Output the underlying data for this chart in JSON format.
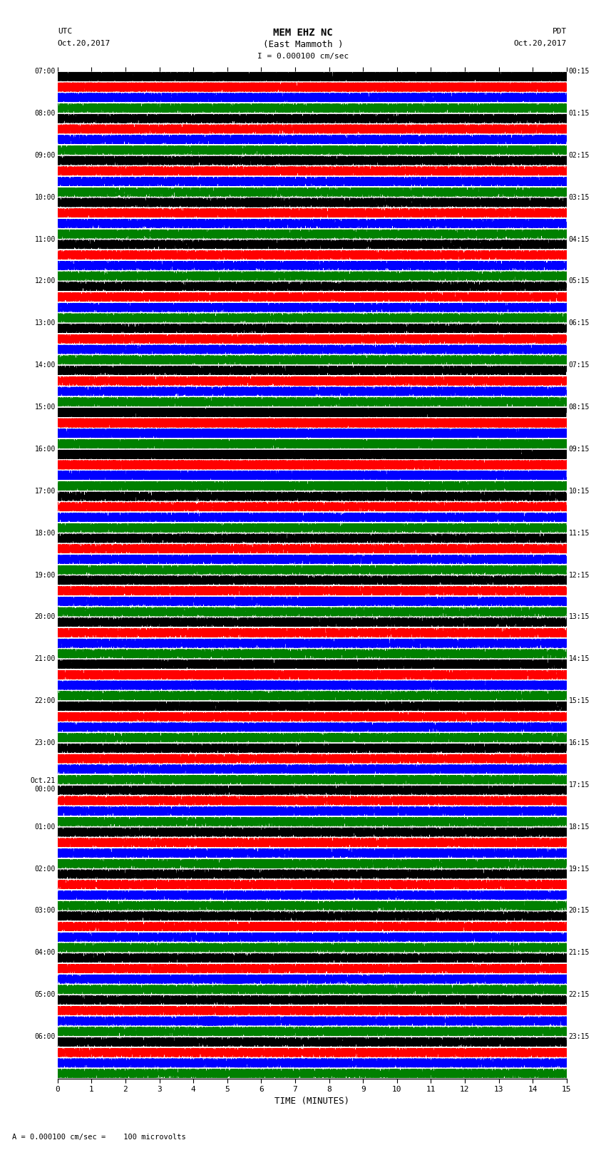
{
  "title_line1": "MEM EHZ NC",
  "title_line2": "(East Mammoth )",
  "scale_label": "I = 0.000100 cm/sec",
  "left_header": "UTC",
  "left_date": "Oct.20,2017",
  "right_header": "PDT",
  "right_date": "Oct.20,2017",
  "bottom_label": "TIME (MINUTES)",
  "bottom_note": "= 0.000100 cm/sec =    100 microvolts",
  "xlabel_ticks": [
    0,
    1,
    2,
    3,
    4,
    5,
    6,
    7,
    8,
    9,
    10,
    11,
    12,
    13,
    14,
    15
  ],
  "utc_labels": [
    "07:00",
    "08:00",
    "09:00",
    "10:00",
    "11:00",
    "12:00",
    "13:00",
    "14:00",
    "15:00",
    "16:00",
    "17:00",
    "18:00",
    "19:00",
    "20:00",
    "21:00",
    "22:00",
    "23:00",
    "Oct.21\n00:00",
    "01:00",
    "02:00",
    "03:00",
    "04:00",
    "05:00",
    "06:00"
  ],
  "pdt_labels": [
    "00:15",
    "01:15",
    "02:15",
    "03:15",
    "04:15",
    "05:15",
    "06:15",
    "07:15",
    "08:15",
    "09:15",
    "10:15",
    "11:15",
    "12:15",
    "13:15",
    "14:15",
    "15:15",
    "16:15",
    "17:15",
    "18:15",
    "19:15",
    "20:15",
    "21:15",
    "22:15",
    "23:15"
  ],
  "num_rows": 24,
  "traces_per_row": 4,
  "colors": [
    "black",
    "red",
    "blue",
    "green"
  ],
  "bg_color": "#ffffff",
  "fig_width": 8.5,
  "fig_height": 16.13,
  "dpi": 100,
  "xmin": 0,
  "xmax": 15,
  "seed": 42,
  "n_points": 9000,
  "trace_amp": 0.09,
  "grid_color": "#aaaaaa",
  "grid_lw": 0.3
}
